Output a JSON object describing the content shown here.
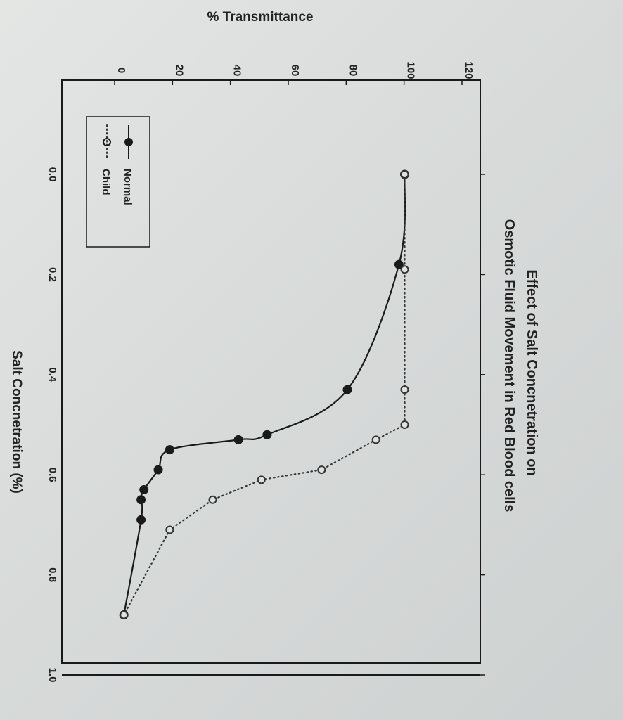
{
  "chart_data": {
    "type": "line",
    "title_lines": [
      "Effect of Salt Concnetration on",
      "Osmotic Fluid Movement in Red Blood cells"
    ],
    "xlabel": "Salt Concnetration (%)",
    "ylabel": "% Transmittance",
    "xlim": [
      0.0,
      1.0
    ],
    "ylim": [
      0,
      120
    ],
    "x_ticks": [
      "0.0",
      "0.2",
      "0.4",
      "0.6",
      "0.8",
      "1.0"
    ],
    "y_ticks": [
      "0",
      "20",
      "40",
      "60",
      "80",
      "100",
      "120"
    ],
    "grid": false,
    "legend_placement": "top-left",
    "series": [
      {
        "name": "Normal",
        "marker": "filled-circle",
        "line": "solid",
        "color": "#1a1a1a",
        "x": [
          0.0,
          0.18,
          0.43,
          0.52,
          0.53,
          0.55,
          0.59,
          0.63,
          0.65,
          0.69,
          0.88
        ],
        "y": [
          100,
          98,
          80,
          52,
          42,
          18,
          14,
          9,
          8,
          8,
          2
        ]
      },
      {
        "name": "Child",
        "marker": "open-circle",
        "line": "dotted",
        "color": "#333333",
        "x": [
          0.0,
          0.19,
          0.43,
          0.5,
          0.53,
          0.59,
          0.61,
          0.65,
          0.71,
          0.88
        ],
        "y": [
          100,
          100,
          100,
          100,
          90,
          71,
          50,
          33,
          18,
          2
        ]
      }
    ]
  }
}
